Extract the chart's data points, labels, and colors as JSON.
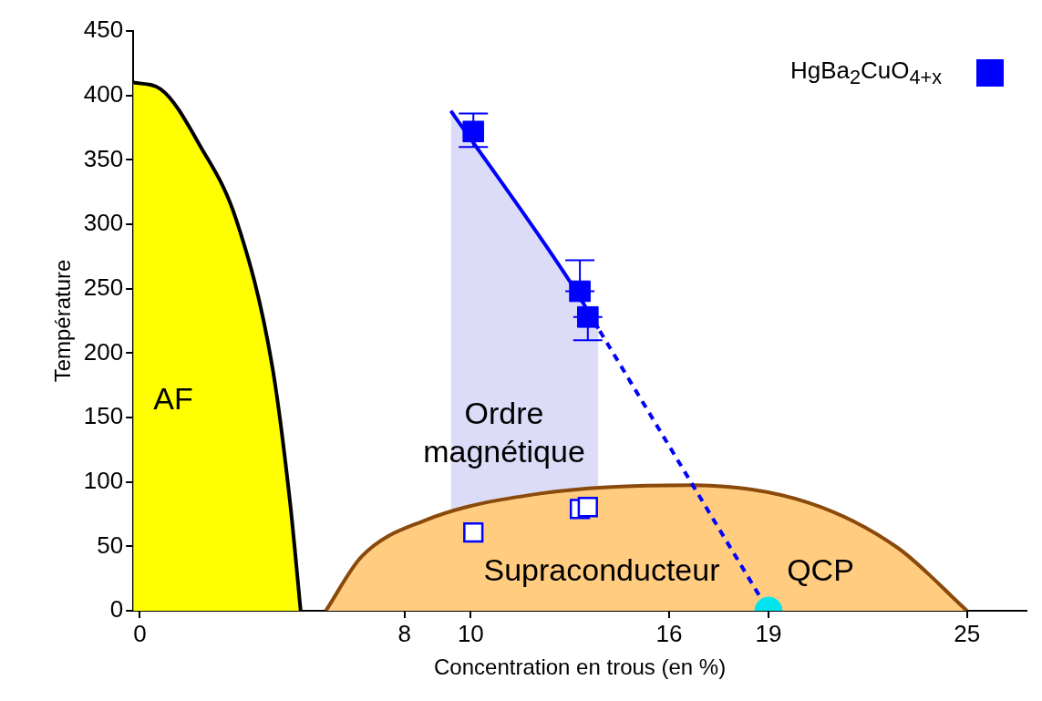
{
  "chart_data": {
    "type": "area",
    "xlabel": "Concentration en trous (en %)",
    "ylabel": "Température",
    "xlim": [
      -0.2,
      26.8
    ],
    "xticks": [
      0,
      8,
      10,
      16,
      19,
      25
    ],
    "ylim": [
      0,
      450
    ],
    "yticks": [
      0,
      50,
      100,
      150,
      200,
      250,
      300,
      350,
      400,
      450
    ],
    "grid": false,
    "legend": "top right",
    "series": [
      {
        "type": "scatter",
        "color": "#00e5ee",
        "marker": "circle",
        "x": [
          19
        ],
        "values": [
          0
        ]
      },
      {
        "type": "scatter",
        "color": "#0000ff",
        "marker": "square_open",
        "x": [
          10.08,
          13.3,
          13.54
        ],
        "values": [
          60.7,
          79,
          80.5
        ]
      },
      {
        "type": "scatter",
        "name": "HgBa$_{2}$CuO$_{4+x}$",
        "color": "#0000ff",
        "marker": "square",
        "x": [
          10.08,
          13.3,
          13.54
        ],
        "values": [
          372,
          248,
          228
        ],
        "errors": [
          [
            360,
            386
          ],
          [
            248,
            272
          ],
          [
            210,
            228
          ]
        ]
      },
      {
        "type": "line",
        "color": "#0000ff",
        "line_style": "dashed",
        "x": [
          13.05,
          19
        ],
        "values": [
          253.5,
          0
        ]
      },
      {
        "color": "#ffcc80",
        "x": [
          5.62,
          6.7,
          8.6,
          12.1,
          16.65,
          20.2,
          22.9,
          25
        ],
        "values": [
          0,
          42,
          70,
          91,
          97.5,
          84,
          49,
          0
        ]
      },
      {
        "color": "#ffff00",
        "x": [
          -0.2,
          0.62,
          1.84,
          2.92,
          4.0,
          4.54,
          4.86
        ],
        "values": [
          410,
          405,
          360,
          303,
          190,
          84,
          0
        ]
      },
      {
        "color": "#dcdcf8",
        "x": [
          9.4,
          13.05,
          13.86
        ],
        "values": [
          388,
          253.5,
          219
        ]
      }
    ],
    "annotations": [
      "AF",
      "Ordre\nmagnétique",
      "Supraconducteur",
      "QCP"
    ]
  }
}
